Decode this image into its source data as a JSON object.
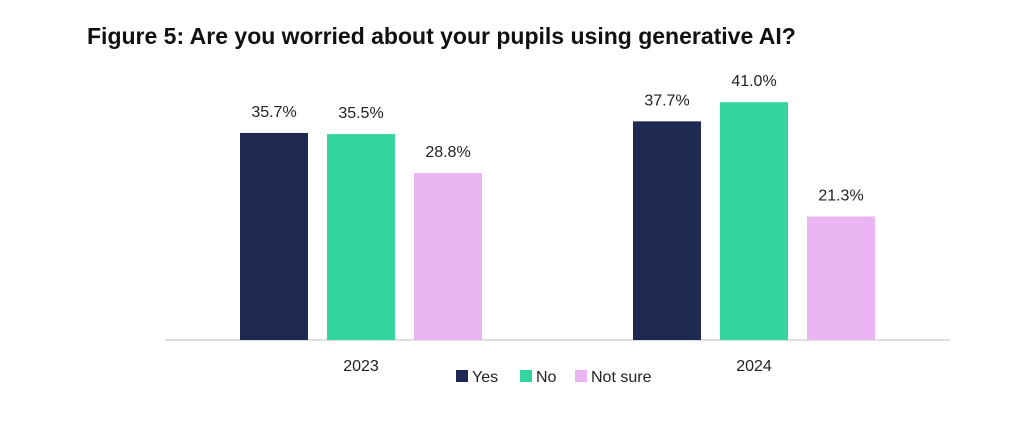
{
  "chart_data": {
    "type": "bar",
    "title": "Figure 5: Are you worried about your pupils using generative AI?",
    "categories": [
      "2023",
      "2024"
    ],
    "series": [
      {
        "name": "Yes",
        "values": [
          35.7,
          37.7
        ],
        "labels": [
          "35.7%",
          "37.7%"
        ],
        "color": "#1f2a52"
      },
      {
        "name": "No",
        "values": [
          35.5,
          41.0
        ],
        "labels": [
          "35.5%",
          "41.0%"
        ],
        "color": "#33d49e"
      },
      {
        "name": "Not sure",
        "values": [
          28.8,
          21.3
        ],
        "labels": [
          "28.8%",
          "21.3%"
        ],
        "color": "#ebb4f2"
      }
    ],
    "ylim": [
      0,
      50
    ],
    "grid": false,
    "legend_position": "bottom-center",
    "xlabel": "",
    "ylabel": ""
  }
}
